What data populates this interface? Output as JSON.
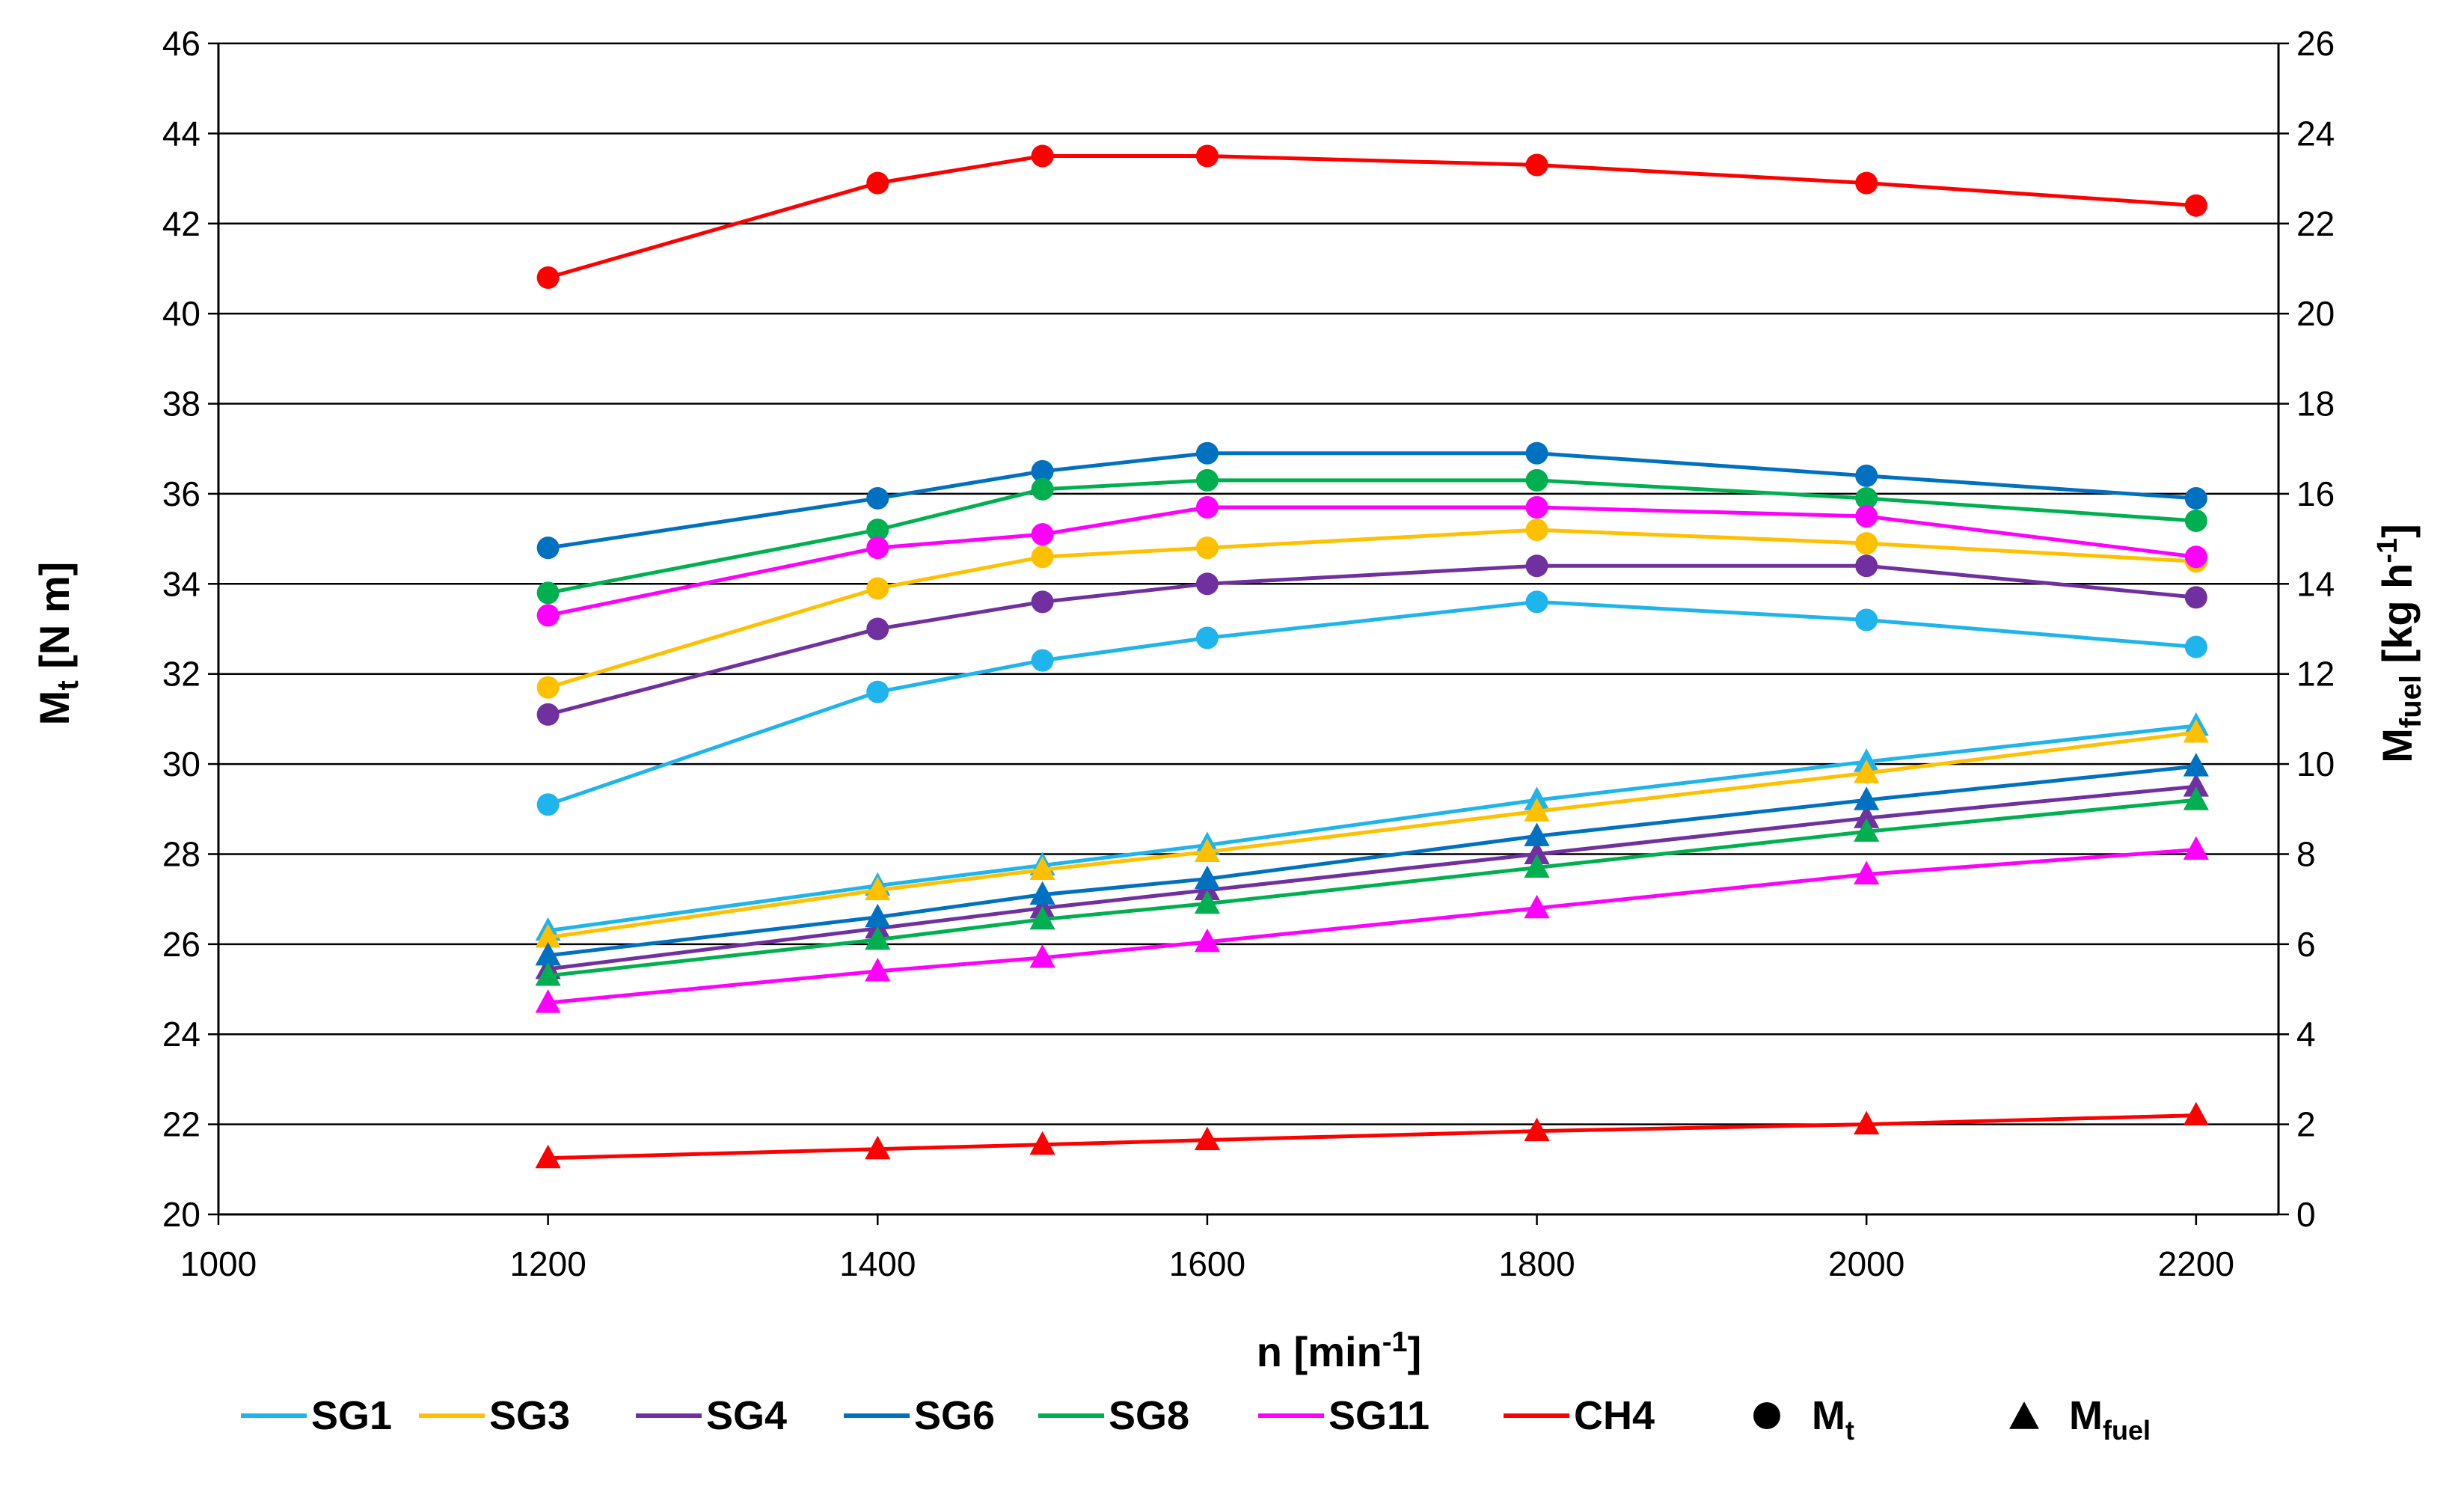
{
  "chart_data": {
    "type": "line",
    "x": [
      1200,
      1400,
      1500,
      1600,
      1800,
      2000,
      2200
    ],
    "xlabel": "n [min",
    "xlabel_sup": "-1",
    "xlabel_suffix": "]",
    "ylabel": "M",
    "ylabel_sub": "t",
    "ylabel_suffix": " [N m]",
    "y2label": "M",
    "y2label_sub": "fuel",
    "y2label_suffix": " [kg h",
    "y2label_sup": "-1",
    "y2label_end": "]",
    "xlim": [
      1000,
      2250
    ],
    "ylim": [
      20,
      46
    ],
    "y2lim": [
      0,
      26
    ],
    "xticks": [
      "1000",
      "1200",
      "1400",
      "1600",
      "1800",
      "2000",
      "2200"
    ],
    "yticks": [
      "20",
      "22",
      "24",
      "26",
      "28",
      "30",
      "32",
      "34",
      "36",
      "38",
      "40",
      "42",
      "44",
      "46"
    ],
    "y2ticks": [
      "0",
      "2",
      "4",
      "6",
      "8",
      "10",
      "12",
      "14",
      "16",
      "18",
      "20",
      "22",
      "24",
      "26"
    ],
    "grid": true,
    "series": [
      {
        "name": "SG1",
        "color": "#1FB4EB",
        "Mt": [
          29.1,
          31.6,
          32.3,
          32.8,
          33.6,
          33.2,
          32.6
        ],
        "Mfuel": [
          6.3,
          7.3,
          7.75,
          8.2,
          9.2,
          10.05,
          10.85
        ]
      },
      {
        "name": "SG3",
        "color": "#FFC000",
        "Mt": [
          31.7,
          33.9,
          34.6,
          34.8,
          35.2,
          34.9,
          34.5
        ],
        "Mfuel": [
          6.15,
          7.2,
          7.65,
          8.05,
          8.95,
          9.8,
          10.7
        ]
      },
      {
        "name": "SG4",
        "color": "#7030A0",
        "Mt": [
          31.1,
          33.0,
          33.6,
          34.0,
          34.4,
          34.4,
          33.7
        ],
        "Mfuel": [
          5.45,
          6.35,
          6.8,
          7.2,
          8.0,
          8.8,
          9.5
        ]
      },
      {
        "name": "SG6",
        "color": "#0070C0",
        "Mt": [
          34.8,
          35.9,
          36.5,
          36.9,
          36.9,
          36.4,
          35.9
        ],
        "Mfuel": [
          5.75,
          6.6,
          7.1,
          7.45,
          8.4,
          9.2,
          9.95
        ]
      },
      {
        "name": "SG8",
        "color": "#00B050",
        "Mt": [
          33.8,
          35.2,
          36.1,
          36.3,
          36.3,
          35.9,
          35.4
        ],
        "Mfuel": [
          5.3,
          6.1,
          6.55,
          6.9,
          7.7,
          8.5,
          9.2
        ]
      },
      {
        "name": "SG11",
        "color": "#FF00FF",
        "Mt": [
          33.3,
          34.8,
          35.1,
          35.7,
          35.7,
          35.5,
          34.6
        ],
        "Mfuel": [
          4.7,
          5.4,
          5.7,
          6.05,
          6.8,
          7.55,
          8.1
        ]
      },
      {
        "name": "CH4",
        "color": "#FF0000",
        "Mt": [
          40.8,
          42.9,
          43.5,
          43.5,
          43.3,
          42.9,
          42.4
        ],
        "Mfuel": [
          1.25,
          1.45,
          1.55,
          1.65,
          1.85,
          2.0,
          2.2
        ]
      }
    ],
    "marker_legend": [
      {
        "label": "M",
        "sub": "t",
        "marker": "circle"
      },
      {
        "label": "M",
        "sub": "fuel",
        "marker": "triangle"
      }
    ]
  }
}
